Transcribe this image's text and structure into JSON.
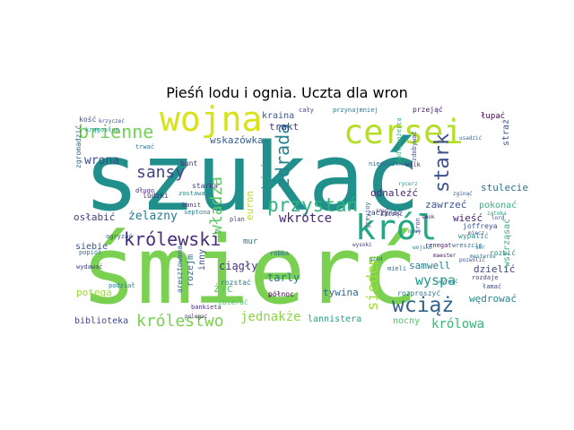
{
  "chart_data": {
    "type": "wordcloud",
    "title": "Pieśń lodu i ognia. Uczta dla wron",
    "words": [
      {
        "text": "szukać",
        "color": "#21908d"
      },
      {
        "text": "śmierć",
        "color": "#7ad151"
      },
      {
        "text": "cersei",
        "color": "#b5de2b"
      },
      {
        "text": "wojna",
        "color": "#d8e219"
      },
      {
        "text": "król",
        "color": "#22a884"
      },
      {
        "text": "królewski",
        "color": "#472d7b"
      },
      {
        "text": "przystań",
        "color": "#2db27d"
      },
      {
        "text": "wciąż",
        "color": "#33638d"
      },
      {
        "text": "brienne",
        "color": "#73d056"
      },
      {
        "text": "sansy",
        "color": "#414487"
      },
      {
        "text": "zdrada",
        "color": "#25838e"
      },
      {
        "text": "stark",
        "color": "#3b528b"
      },
      {
        "text": "królestwo",
        "color": "#7ad151"
      },
      {
        "text": "władza",
        "color": "#5ec962"
      },
      {
        "text": "siedem",
        "color": "#a0da39"
      },
      {
        "text": "wyspa",
        "color": "#1e9b8a"
      },
      {
        "text": "wrona",
        "color": "#3e4989"
      },
      {
        "text": "żelazny",
        "color": "#2a788e"
      },
      {
        "text": "wkrótce",
        "color": "#482576"
      },
      {
        "text": "jednakże",
        "color": "#8bd646"
      },
      {
        "text": "królowa",
        "color": "#35b779"
      },
      {
        "text": "lannistera",
        "color": "#1fa088"
      },
      {
        "text": "biblioteka",
        "color": "#404688"
      },
      {
        "text": "potęga",
        "color": "#9bd93c"
      },
      {
        "text": "odnaleźć",
        "color": "#482878"
      },
      {
        "text": "zawrzeć",
        "color": "#3b518b"
      },
      {
        "text": "stulecie",
        "color": "#2c728e"
      },
      {
        "text": "pokonać",
        "color": "#2fb47c"
      },
      {
        "text": "samwell",
        "color": "#287d8e"
      },
      {
        "text": "dzielić",
        "color": "#3f4788"
      },
      {
        "text": "wędrować",
        "color": "#24878e"
      },
      {
        "text": "tywina",
        "color": "#31688e"
      },
      {
        "text": "nocny",
        "color": "#52c569"
      },
      {
        "text": "ciągły",
        "color": "#46337e"
      },
      {
        "text": "żyć",
        "color": "#5ec962"
      },
      {
        "text": "tarly",
        "color": "#2b758e"
      },
      {
        "text": "euron",
        "color": "#b8de29"
      },
      {
        "text": "nadzieja",
        "color": "#1f948c"
      },
      {
        "text": "trakt",
        "color": "#453781"
      },
      {
        "text": "kraina",
        "color": "#3a548c"
      },
      {
        "text": "wskazówka",
        "color": "#365c8d"
      },
      {
        "text": "osłabić",
        "color": "#414487"
      },
      {
        "text": "siebie",
        "color": "#39568c"
      },
      {
        "text": "wieść",
        "color": "#482173"
      },
      {
        "text": "rozbić",
        "color": "#27808e"
      },
      {
        "text": "robba",
        "color": "#2e6f8e"
      },
      {
        "text": "zbierać",
        "color": "#52c569"
      },
      {
        "text": "północ",
        "color": "#440154"
      },
      {
        "text": "rozproszyć",
        "color": "#2d718e"
      },
      {
        "text": "inny",
        "color": "#3d4d8a"
      },
      {
        "text": "rozejm",
        "color": "#31688e"
      },
      {
        "text": "ludzki",
        "color": "#472e7c"
      },
      {
        "text": "bunt",
        "color": "#472c7a"
      },
      {
        "text": "kość",
        "color": "#3e4c8a"
      },
      {
        "text": "wstrząsać",
        "color": "#2db27d"
      },
      {
        "text": "łupać",
        "color": "#440154"
      },
      {
        "text": "straż",
        "color": "#3b528b"
      },
      {
        "text": "mur",
        "color": "#2c728e"
      },
      {
        "text": "plan",
        "color": "#3e4a89"
      },
      {
        "text": "septona",
        "color": "#26818e"
      },
      {
        "text": "starka",
        "color": "#453882"
      },
      {
        "text": "zostawać",
        "color": "#23888e"
      },
      {
        "text": "długo",
        "color": "#482677"
      },
      {
        "text": "trwać",
        "color": "#2c718e"
      },
      {
        "text": "krzyczeć",
        "color": "#3c4f8a"
      },
      {
        "text": "krągosłup",
        "color": "#20928c"
      },
      {
        "text": "zgromadzić",
        "color": "#2e6e8e"
      },
      {
        "text": "cały",
        "color": "#424186"
      },
      {
        "text": "przynajmniej",
        "color": "#2a778e"
      },
      {
        "text": "przejąć",
        "color": "#482071"
      },
      {
        "text": "padlinożerca",
        "color": "#31b57b"
      },
      {
        "text": "zdobywać",
        "color": "#3d4e8a"
      },
      {
        "text": "niedobitka",
        "color": "#2e6d8e"
      },
      {
        "text": "wilk",
        "color": "#482576"
      },
      {
        "text": "zacząć",
        "color": "#443b84"
      },
      {
        "text": "wyrwać",
        "color": "#2b758e"
      },
      {
        "text": "usadzić",
        "color": "#31678e"
      },
      {
        "text": "ogryzać",
        "color": "#39568c"
      },
      {
        "text": "popiół",
        "color": "#2a778e"
      },
      {
        "text": "wydawać",
        "color": "#3f4788"
      },
      {
        "text": "podział",
        "color": "#25848e"
      },
      {
        "text": "polegać",
        "color": "#472d7b"
      },
      {
        "text": "aresztowana",
        "color": "#33628d"
      },
      {
        "text": "bankieta",
        "color": "#46307e"
      },
      {
        "text": "rozstać",
        "color": "#2a788e"
      },
      {
        "text": "banit",
        "color": "#453781"
      },
      {
        "text": "greyjoy",
        "color": "#31688e"
      },
      {
        "text": "joffreya",
        "color": "#3a548c"
      },
      {
        "text": "wypalić",
        "color": "#21918c"
      },
      {
        "text": "łamać",
        "color": "#3f4889"
      },
      {
        "text": "renegat",
        "color": "#482475"
      },
      {
        "text": "mieli",
        "color": "#2c738e"
      },
      {
        "text": "zaczynać",
        "color": "#414487"
      },
      {
        "text": "snuć",
        "color": "#472f7d"
      },
      {
        "text": "tron",
        "color": "#3e4989"
      },
      {
        "text": "wreszcie",
        "color": "#2d708e"
      },
      {
        "text": "zginąć",
        "color": "#38588c"
      },
      {
        "text": "zatoka",
        "color": "#1fa187"
      },
      {
        "text": "pozwolić",
        "color": "#3c4f8a"
      },
      {
        "text": "mesteros",
        "color": "#2e6e8e"
      },
      {
        "text": "wysoki",
        "color": "#443983"
      },
      {
        "text": "nowy",
        "color": "#32658e"
      },
      {
        "text": "rozdaje",
        "color": "#404588"
      },
      {
        "text": "wojsko",
        "color": "#297a8e"
      },
      {
        "text": "smok",
        "color": "#482576"
      },
      {
        "text": "lord",
        "color": "#3b528b"
      },
      {
        "text": "ser",
        "color": "#2b748e"
      },
      {
        "text": "maester",
        "color": "#471063"
      },
      {
        "text": "rycerz",
        "color": "#1f988b"
      },
      {
        "text": "miecz",
        "color": "#3d4d8a"
      },
      {
        "text": "gród",
        "color": "#31688e"
      }
    ]
  }
}
